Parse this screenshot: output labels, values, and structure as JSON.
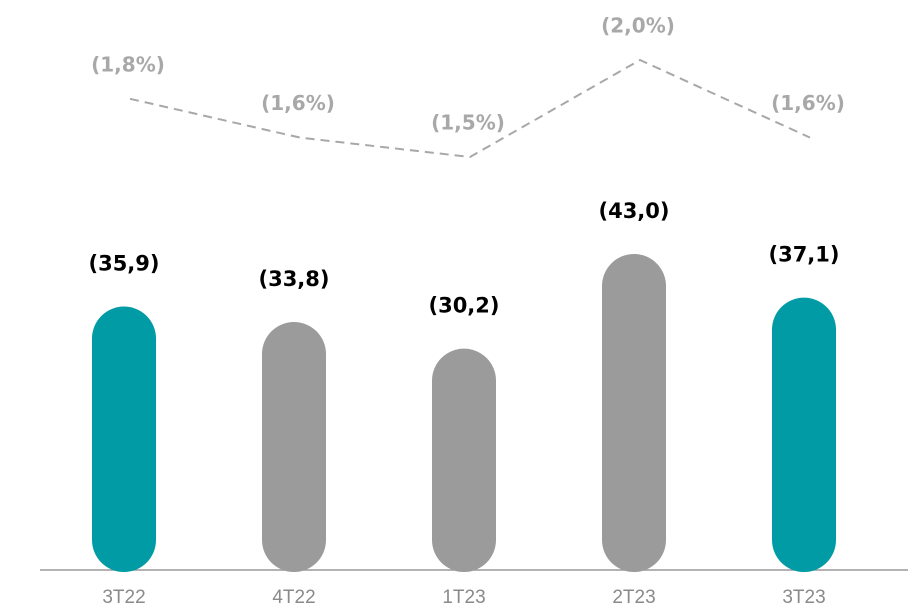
{
  "chart_data": {
    "type": "bar",
    "categories": [
      "3T22",
      "4T22",
      "1T23",
      "2T23",
      "3T23"
    ],
    "series": [
      {
        "type": "bar",
        "values": [
          35.9,
          33.8,
          30.2,
          43.0,
          37.1
        ],
        "value_labels": [
          "(35,9)",
          "(33,8)",
          "(30,2)",
          "(43,0)",
          "(37,1)"
        ],
        "colors": [
          "#009ba4",
          "#9b9b9b",
          "#9b9b9b",
          "#9b9b9b",
          "#009ba4"
        ]
      },
      {
        "type": "line",
        "values": [
          1.8,
          1.6,
          1.5,
          2.0,
          1.6
        ],
        "value_labels": [
          "(1,8%)",
          "(1,6%)",
          "(1,5%)",
          "(2,0%)",
          "(1,6%)"
        ],
        "color": "#a8a8a8"
      }
    ]
  }
}
